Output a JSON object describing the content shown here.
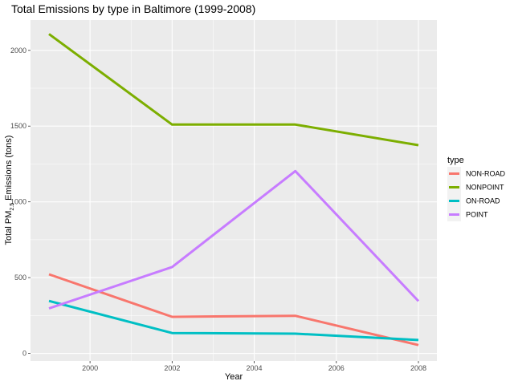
{
  "chart_data": {
    "type": "line",
    "title": "Total Emissions by type in Baltimore (1999-2008)",
    "xlabel": "Year",
    "ylabel_prefix": "Total PM",
    "ylabel_sub": "2.5",
    "ylabel_suffix": " Emissions (tons)",
    "x": [
      1999,
      2002,
      2005,
      2008
    ],
    "xlim": [
      1998.55,
      2008.45
    ],
    "ylim": [
      -50,
      2200
    ],
    "xticks": [
      2000,
      2002,
      2004,
      2006,
      2008
    ],
    "yticks": [
      0,
      500,
      1000,
      1500,
      2000
    ],
    "grid": true,
    "legend": {
      "title": "type",
      "placement": "right"
    },
    "series": [
      {
        "name": "NON-ROAD",
        "color": "#F8766D",
        "values": [
          522,
          241,
          248,
          55
        ]
      },
      {
        "name": "NONPOINT",
        "color": "#7CAE00",
        "values": [
          2108,
          1510,
          1510,
          1374
        ]
      },
      {
        "name": "ON-ROAD",
        "color": "#00BFC4",
        "values": [
          346,
          134,
          130,
          88
        ]
      },
      {
        "name": "POINT",
        "color": "#C77CFF",
        "values": [
          297,
          570,
          1203,
          345
        ]
      }
    ]
  }
}
